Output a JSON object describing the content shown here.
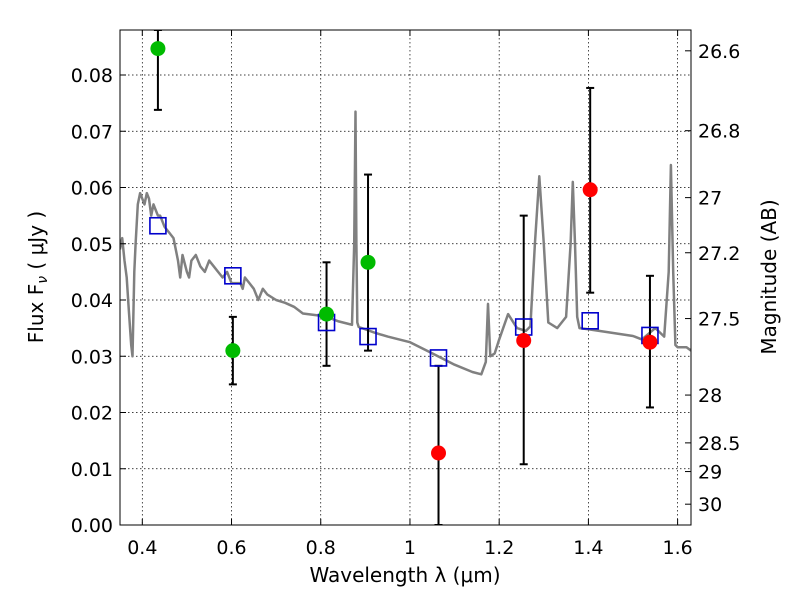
{
  "chart_data": {
    "type": "scatter",
    "xlabel": "Wavelength  λ (μm)",
    "ylabel": "Flux  F",
    "ylabel_sub": "ν",
    "ylabel_unit": "  ( μJy )",
    "ylabel_right": "Magnitude (AB)",
    "xlim": [
      0.35,
      1.63
    ],
    "ylim": [
      0.0,
      0.088
    ],
    "grid": true,
    "x_ticks": [
      0.4,
      0.6,
      0.8,
      1.0,
      1.2,
      1.4,
      1.6
    ],
    "x_tick_labels": [
      "0.4",
      "0.6",
      "0.8",
      "1",
      "1.2",
      "1.4",
      "1.6"
    ],
    "y_ticks": [
      0.0,
      0.01,
      0.02,
      0.03,
      0.04,
      0.05,
      0.06,
      0.07,
      0.08
    ],
    "y_tick_labels": [
      "0.00",
      "0.01",
      "0.02",
      "0.03",
      "0.04",
      "0.05",
      "0.06",
      "0.07",
      "0.08"
    ],
    "right_ticks": [
      {
        "label": "26.6",
        "flux": 0.0843
      },
      {
        "label": "26.8",
        "flux": 0.0701
      },
      {
        "label": "27",
        "flux": 0.0582
      },
      {
        "label": "27.2",
        "flux": 0.0484
      },
      {
        "label": "27.5",
        "flux": 0.0367
      },
      {
        "label": "28",
        "flux": 0.0231
      },
      {
        "label": "28.5",
        "flux": 0.0146
      },
      {
        "label": "29",
        "flux": 0.0095
      },
      {
        "label": "30",
        "flux": 0.0037
      }
    ],
    "series": [
      {
        "style": "line",
        "color": "#808080",
        "x": [
          0.35,
          0.355,
          0.36,
          0.365,
          0.37,
          0.375,
          0.378,
          0.382,
          0.385,
          0.39,
          0.395,
          0.4,
          0.405,
          0.41,
          0.415,
          0.42,
          0.425,
          0.43,
          0.435,
          0.44,
          0.45,
          0.46,
          0.47,
          0.48,
          0.485,
          0.49,
          0.5,
          0.505,
          0.51,
          0.52,
          0.53,
          0.54,
          0.55,
          0.56,
          0.57,
          0.58,
          0.59,
          0.6,
          0.61,
          0.62,
          0.625,
          0.63,
          0.64,
          0.65,
          0.66,
          0.67,
          0.68,
          0.7,
          0.72,
          0.74,
          0.76,
          0.78,
          0.8,
          0.82,
          0.84,
          0.86,
          0.87,
          0.875,
          0.878,
          0.88,
          0.882,
          0.885,
          0.9,
          0.92,
          0.95,
          1.0,
          1.05,
          1.1,
          1.14,
          1.16,
          1.17,
          1.175,
          1.18,
          1.19,
          1.2,
          1.22,
          1.24,
          1.26,
          1.27,
          1.28,
          1.29,
          1.3,
          1.31,
          1.33,
          1.35,
          1.36,
          1.365,
          1.37,
          1.375,
          1.38,
          1.4,
          1.45,
          1.5,
          1.52,
          1.55,
          1.57,
          1.58,
          1.585,
          1.59,
          1.595,
          1.6,
          1.62,
          1.63
        ],
        "y": [
          0.049,
          0.051,
          0.047,
          0.044,
          0.038,
          0.032,
          0.03,
          0.045,
          0.05,
          0.057,
          0.059,
          0.058,
          0.057,
          0.059,
          0.058,
          0.055,
          0.057,
          0.056,
          0.055,
          0.055,
          0.053,
          0.052,
          0.051,
          0.047,
          0.044,
          0.048,
          0.045,
          0.044,
          0.047,
          0.048,
          0.046,
          0.045,
          0.047,
          0.046,
          0.045,
          0.044,
          0.045,
          0.043,
          0.043,
          0.043,
          0.042,
          0.044,
          0.043,
          0.042,
          0.04,
          0.042,
          0.041,
          0.04,
          0.0395,
          0.0388,
          0.0376,
          0.0374,
          0.0372,
          0.0368,
          0.0362,
          0.0358,
          0.0356,
          0.05,
          0.0735,
          0.05,
          0.036,
          0.0352,
          0.0348,
          0.0342,
          0.0335,
          0.0325,
          0.0305,
          0.0285,
          0.0272,
          0.0268,
          0.029,
          0.0393,
          0.03,
          0.0305,
          0.033,
          0.0375,
          0.035,
          0.0345,
          0.0353,
          0.05,
          0.062,
          0.05,
          0.036,
          0.035,
          0.037,
          0.05,
          0.061,
          0.05,
          0.037,
          0.035,
          0.0348,
          0.0342,
          0.0336,
          0.033,
          0.035,
          0.0335,
          0.045,
          0.064,
          0.045,
          0.032,
          0.0316,
          0.0316,
          0.031
        ]
      },
      {
        "style": "open-square",
        "color": "#0000cc",
        "x": [
          0.435,
          0.603,
          0.813,
          0.906,
          1.064,
          1.255,
          1.404,
          1.538
        ],
        "y": [
          0.0532,
          0.0443,
          0.036,
          0.0335,
          0.0297,
          0.0352,
          0.0363,
          0.0337
        ]
      },
      {
        "style": "filled-circle",
        "color": "#00bb00",
        "x": [
          0.435,
          0.603,
          0.813,
          0.906
        ],
        "y": [
          0.0847,
          0.031,
          0.0375,
          0.0467
        ],
        "err_low": [
          0.0738,
          0.025,
          0.0283,
          0.031
        ],
        "err_high": [
          0.088,
          0.037,
          0.0467,
          0.0623
        ]
      },
      {
        "style": "filled-circle",
        "color": "#ff0000",
        "x": [
          1.064,
          1.255,
          1.404,
          1.538
        ],
        "y": [
          0.0128,
          0.0328,
          0.0596,
          0.0325
        ],
        "err_low": [
          0.0,
          0.0108,
          0.0413,
          0.0209
        ],
        "err_high": [
          0.0283,
          0.055,
          0.0777,
          0.0443
        ]
      }
    ]
  }
}
